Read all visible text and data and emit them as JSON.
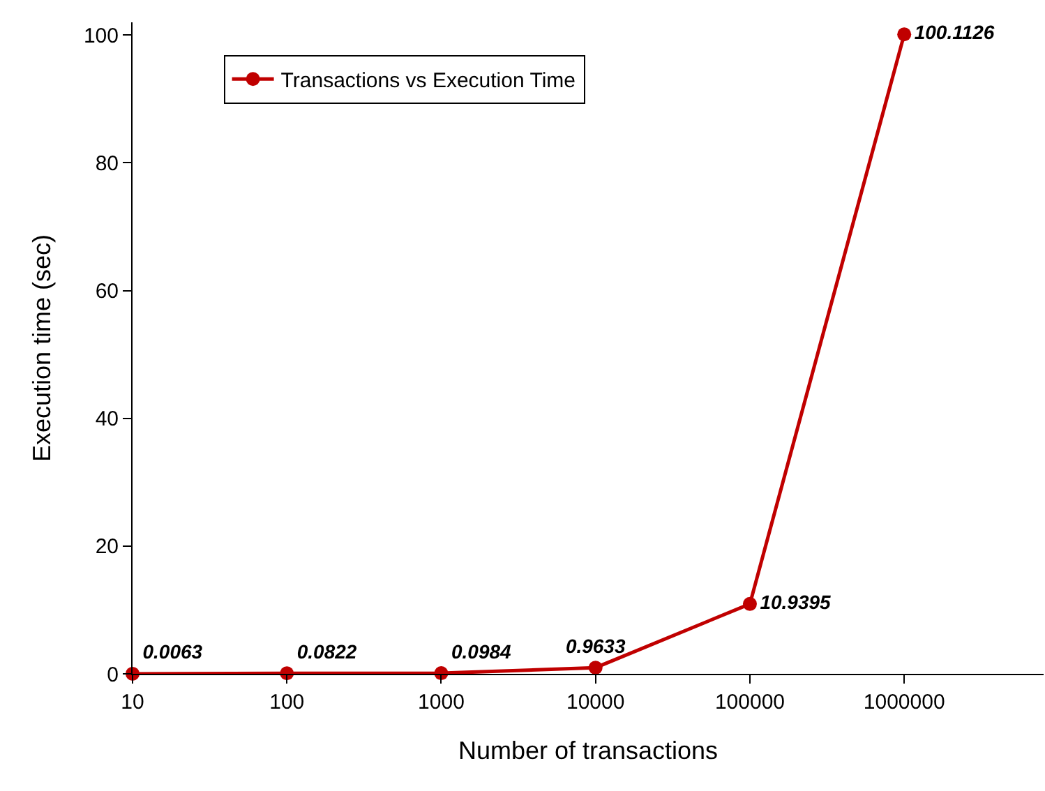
{
  "chart_data": {
    "type": "line",
    "xlabel": "Number of transactions",
    "ylabel": "Execution time (sec)",
    "log": "x",
    "x": [
      10,
      100,
      1000,
      10000,
      100000,
      1000000
    ],
    "series": [
      {
        "name": "Transactions vs Execution Time",
        "color": "#c00000",
        "values": [
          0.0063,
          0.0822,
          0.0984,
          0.9633,
          10.9395,
          100.1126
        ]
      }
    ],
    "xlim": [
      10,
      8000000
    ],
    "xticks": [
      10,
      100,
      1000,
      10000,
      100000,
      1000000
    ],
    "ylim": [
      0,
      102
    ],
    "yticks": [
      0,
      20,
      40,
      60,
      80,
      100
    ],
    "data_labels": true,
    "grid": false,
    "legend": "top left",
    "marker": "circle",
    "line_style": "solid"
  }
}
